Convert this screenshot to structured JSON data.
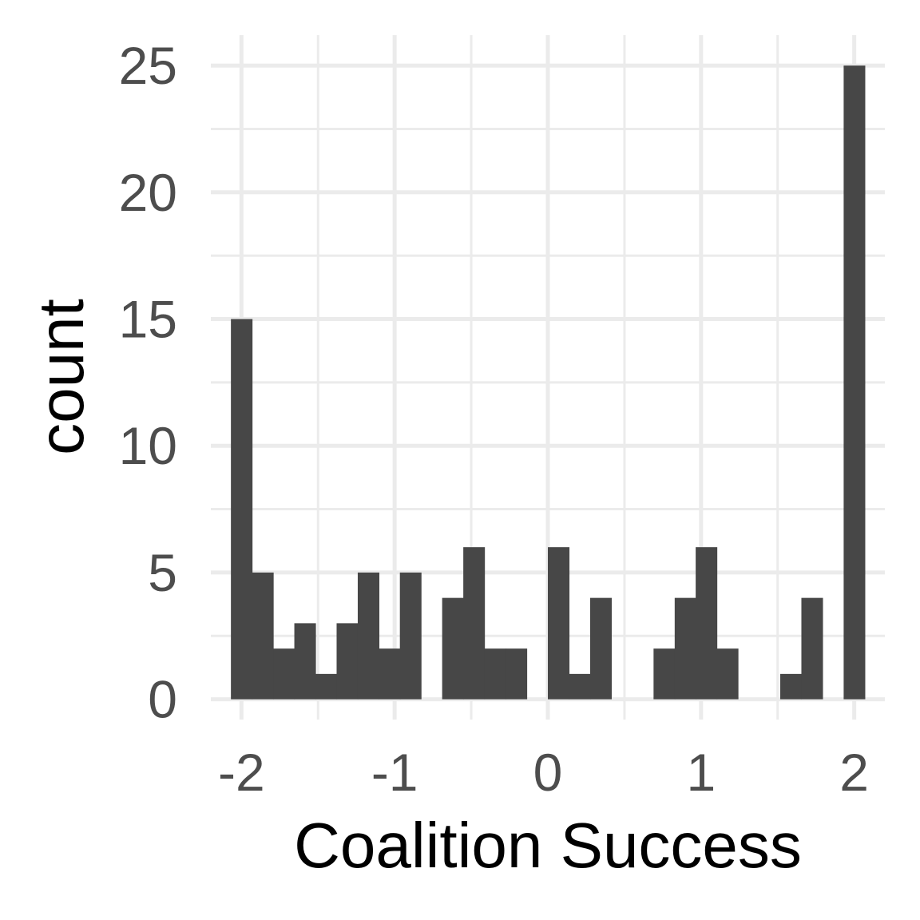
{
  "chart_data": {
    "type": "bar",
    "subtype": "histogram",
    "title": "",
    "xlabel": "Coalition Success",
    "ylabel": "count",
    "xlim": [
      -2.2,
      2.2
    ],
    "ylim": [
      -0.8,
      26.2
    ],
    "x_ticks": [
      -2,
      -1,
      0,
      1,
      2
    ],
    "x_tick_labels": [
      "-2",
      "-1",
      "0",
      "1",
      "2"
    ],
    "y_ticks": [
      0,
      5,
      10,
      15,
      20,
      25
    ],
    "y_tick_labels": [
      "0",
      "5",
      "10",
      "15",
      "20",
      "25"
    ],
    "bin_width": 0.1379,
    "bin_centers": [
      -2.0,
      -1.862,
      -1.724,
      -1.586,
      -1.448,
      -1.31,
      -1.172,
      -1.034,
      -0.897,
      -0.759,
      -0.621,
      -0.483,
      -0.345,
      -0.207,
      -0.069,
      0.069,
      0.207,
      0.345,
      0.483,
      0.621,
      0.759,
      0.897,
      1.034,
      1.172,
      1.31,
      1.448,
      1.586,
      1.724,
      1.862,
      2.0
    ],
    "values": [
      15,
      5,
      2,
      3,
      1,
      3,
      5,
      2,
      5,
      0,
      4,
      6,
      2,
      2,
      0,
      6,
      1,
      4,
      0,
      0,
      2,
      4,
      6,
      2,
      0,
      0,
      1,
      4,
      0,
      25
    ],
    "bar_color": "#474747",
    "grid": true,
    "legend": "none"
  }
}
